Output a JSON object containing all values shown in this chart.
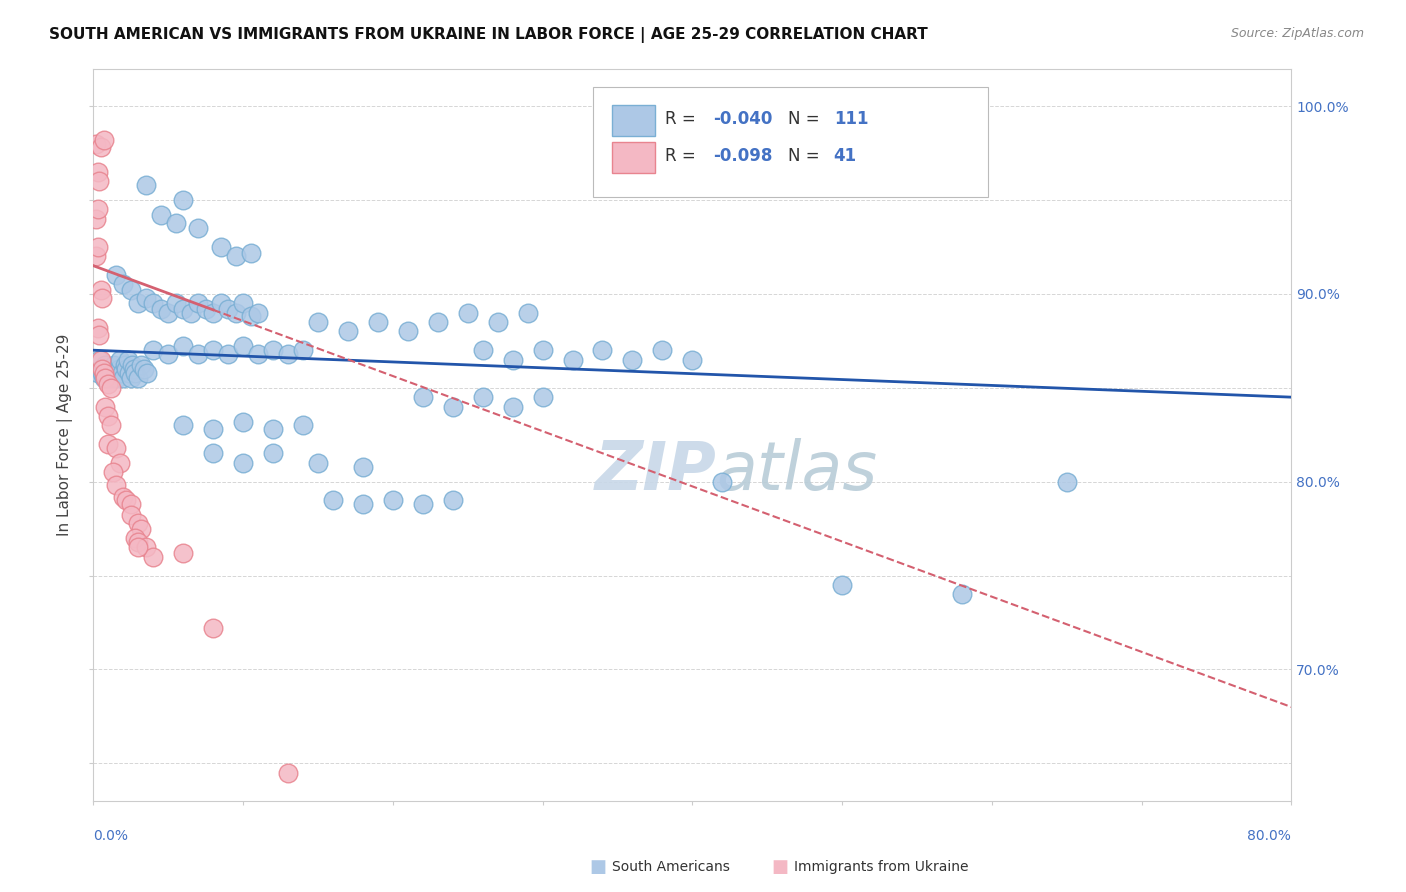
{
  "title": "SOUTH AMERICAN VS IMMIGRANTS FROM UKRAINE IN LABOR FORCE | AGE 25-29 CORRELATION CHART",
  "source": "Source: ZipAtlas.com",
  "ylabel": "In Labor Force | Age 25-29",
  "legend_label1": "South Americans",
  "legend_label2": "Immigrants from Ukraine",
  "r1": "-0.040",
  "n1": "111",
  "r2": "-0.098",
  "n2": "41",
  "blue_color": "#adc8e6",
  "blue_edge": "#7aafd4",
  "pink_color": "#f4b8c4",
  "pink_edge": "#e8848f",
  "trend_blue": "#2255aa",
  "trend_pink": "#d46070",
  "watermark_color": "#c8d8e8",
  "xmin": 0.0,
  "xmax": 80.0,
  "ymin": 63.0,
  "ymax": 102.0,
  "blue_scatter": [
    [
      0.3,
      85.8
    ],
    [
      0.4,
      86.5
    ],
    [
      0.5,
      86.0
    ],
    [
      0.6,
      85.8
    ],
    [
      0.7,
      85.5
    ],
    [
      0.8,
      86.2
    ],
    [
      0.9,
      85.8
    ],
    [
      1.0,
      85.5
    ],
    [
      1.1,
      86.0
    ],
    [
      1.2,
      85.8
    ],
    [
      1.3,
      85.5
    ],
    [
      1.4,
      86.2
    ],
    [
      1.5,
      85.8
    ],
    [
      1.6,
      85.5
    ],
    [
      1.7,
      86.0
    ],
    [
      1.8,
      86.5
    ],
    [
      1.9,
      85.8
    ],
    [
      2.0,
      85.5
    ],
    [
      2.1,
      86.2
    ],
    [
      2.2,
      86.0
    ],
    [
      2.3,
      86.5
    ],
    [
      2.4,
      85.8
    ],
    [
      2.5,
      85.5
    ],
    [
      2.6,
      86.2
    ],
    [
      2.7,
      86.0
    ],
    [
      2.8,
      85.8
    ],
    [
      3.0,
      85.5
    ],
    [
      3.2,
      86.2
    ],
    [
      3.4,
      86.0
    ],
    [
      3.6,
      85.8
    ],
    [
      1.5,
      91.0
    ],
    [
      2.0,
      90.5
    ],
    [
      2.5,
      90.2
    ],
    [
      3.0,
      89.5
    ],
    [
      3.5,
      89.8
    ],
    [
      4.0,
      89.5
    ],
    [
      4.5,
      89.2
    ],
    [
      5.0,
      89.0
    ],
    [
      5.5,
      89.5
    ],
    [
      6.0,
      89.2
    ],
    [
      6.5,
      89.0
    ],
    [
      7.0,
      89.5
    ],
    [
      7.5,
      89.2
    ],
    [
      8.0,
      89.0
    ],
    [
      8.5,
      89.5
    ],
    [
      9.0,
      89.2
    ],
    [
      9.5,
      89.0
    ],
    [
      10.0,
      89.5
    ],
    [
      10.5,
      88.8
    ],
    [
      11.0,
      89.0
    ],
    [
      3.5,
      95.8
    ],
    [
      4.5,
      94.2
    ],
    [
      5.5,
      93.8
    ],
    [
      6.0,
      95.0
    ],
    [
      7.0,
      93.5
    ],
    [
      8.5,
      92.5
    ],
    [
      9.5,
      92.0
    ],
    [
      10.5,
      92.2
    ],
    [
      4.0,
      87.0
    ],
    [
      5.0,
      86.8
    ],
    [
      6.0,
      87.2
    ],
    [
      7.0,
      86.8
    ],
    [
      8.0,
      87.0
    ],
    [
      9.0,
      86.8
    ],
    [
      10.0,
      87.2
    ],
    [
      11.0,
      86.8
    ],
    [
      12.0,
      87.0
    ],
    [
      13.0,
      86.8
    ],
    [
      14.0,
      87.0
    ],
    [
      6.0,
      83.0
    ],
    [
      8.0,
      82.8
    ],
    [
      10.0,
      83.2
    ],
    [
      12.0,
      82.8
    ],
    [
      14.0,
      83.0
    ],
    [
      8.0,
      81.5
    ],
    [
      10.0,
      81.0
    ],
    [
      12.0,
      81.5
    ],
    [
      15.0,
      81.0
    ],
    [
      18.0,
      80.8
    ],
    [
      16.0,
      79.0
    ],
    [
      18.0,
      78.8
    ],
    [
      20.0,
      79.0
    ],
    [
      22.0,
      78.8
    ],
    [
      24.0,
      79.0
    ],
    [
      26.0,
      87.0
    ],
    [
      28.0,
      86.5
    ],
    [
      30.0,
      87.0
    ],
    [
      32.0,
      86.5
    ],
    [
      34.0,
      87.0
    ],
    [
      36.0,
      86.5
    ],
    [
      38.0,
      87.0
    ],
    [
      40.0,
      86.5
    ],
    [
      15.0,
      88.5
    ],
    [
      17.0,
      88.0
    ],
    [
      19.0,
      88.5
    ],
    [
      21.0,
      88.0
    ],
    [
      23.0,
      88.5
    ],
    [
      25.0,
      89.0
    ],
    [
      27.0,
      88.5
    ],
    [
      29.0,
      89.0
    ],
    [
      22.0,
      84.5
    ],
    [
      24.0,
      84.0
    ],
    [
      26.0,
      84.5
    ],
    [
      28.0,
      84.0
    ],
    [
      30.0,
      84.5
    ],
    [
      42.0,
      80.0
    ],
    [
      50.0,
      74.5
    ],
    [
      58.0,
      74.0
    ],
    [
      65.0,
      80.0
    ]
  ],
  "pink_scatter": [
    [
      0.2,
      98.0
    ],
    [
      0.5,
      97.8
    ],
    [
      0.7,
      98.2
    ],
    [
      0.3,
      96.5
    ],
    [
      0.4,
      96.0
    ],
    [
      0.2,
      94.0
    ],
    [
      0.3,
      94.5
    ],
    [
      0.2,
      92.0
    ],
    [
      0.3,
      92.5
    ],
    [
      0.5,
      90.2
    ],
    [
      0.6,
      89.8
    ],
    [
      0.3,
      88.2
    ],
    [
      0.4,
      87.8
    ],
    [
      0.5,
      86.5
    ],
    [
      0.6,
      86.0
    ],
    [
      0.7,
      85.8
    ],
    [
      0.8,
      85.5
    ],
    [
      1.0,
      85.2
    ],
    [
      1.2,
      85.0
    ],
    [
      0.8,
      84.0
    ],
    [
      1.0,
      83.5
    ],
    [
      1.2,
      83.0
    ],
    [
      1.0,
      82.0
    ],
    [
      1.5,
      81.8
    ],
    [
      1.8,
      81.0
    ],
    [
      1.3,
      80.5
    ],
    [
      1.5,
      79.8
    ],
    [
      2.0,
      79.2
    ],
    [
      2.2,
      79.0
    ],
    [
      2.5,
      78.8
    ],
    [
      2.5,
      78.2
    ],
    [
      3.0,
      77.8
    ],
    [
      3.2,
      77.5
    ],
    [
      2.8,
      77.0
    ],
    [
      3.0,
      76.8
    ],
    [
      3.5,
      76.5
    ],
    [
      4.0,
      76.0
    ],
    [
      6.0,
      76.2
    ],
    [
      8.0,
      72.2
    ],
    [
      13.0,
      64.5
    ],
    [
      3.0,
      76.5
    ]
  ],
  "blue_trend_y0": 87.0,
  "blue_trend_y80": 84.5,
  "pink_trend_y0": 91.5,
  "pink_trend_y80": 68.0
}
